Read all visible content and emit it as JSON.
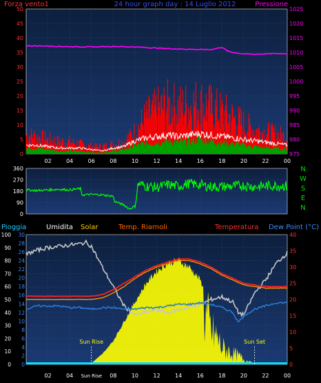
{
  "colors": {
    "background": "#000000",
    "panel_top": "#0d1f3d",
    "panel_bottom": "#1b3a73",
    "axis_text": "#ffffff",
    "wind_label": "#ff3030",
    "title": "#3050ff",
    "pressure_label": "#ff00ff",
    "rain_label": "#22c8ff",
    "humidity_label": "#ffffff",
    "solar_label": "#ffd000",
    "riarnoli_label": "#ff6a00",
    "temperature_label": "#ff3030",
    "dewpoint_label": "#3a8cff",
    "direction_letters": "#00e000"
  },
  "chart_data": [
    {
      "id": "wind_pressure",
      "type": "area",
      "title": "24 hour graph day : 14 Luglio 2012",
      "left_label": "Forza vento1",
      "right_label": "Pressione",
      "ylim_left": [
        0,
        50
      ],
      "yticks_left": [
        "0",
        "5",
        "10",
        "15",
        "20",
        "25",
        "30",
        "35",
        "40",
        "45",
        "50"
      ],
      "ylim_right": [
        975,
        1025
      ],
      "yticks_right": [
        "975",
        "980",
        "985",
        "990",
        "995",
        "1000",
        "1005",
        "1010",
        "1015",
        "1020",
        "1025"
      ],
      "xticks": [
        "02",
        "04",
        "06",
        "08",
        "10",
        "12",
        "14",
        "16",
        "18",
        "20",
        "22",
        "00"
      ],
      "series": [
        {
          "name": "Forza vento1",
          "color": "#ff0000",
          "style": "gust-bars",
          "x": [
            0,
            1,
            2,
            3,
            4,
            5,
            6,
            7,
            8,
            9,
            10,
            11,
            12,
            13,
            14,
            15,
            16,
            17,
            18,
            19,
            20,
            21,
            22,
            23,
            24
          ],
          "values": [
            8,
            7,
            6,
            5,
            5,
            4,
            3,
            3,
            4,
            5,
            9,
            15,
            18,
            20,
            19,
            20,
            21,
            19,
            17,
            15,
            12,
            10,
            9,
            8,
            7
          ]
        },
        {
          "name": "wind-average",
          "color": "#00a000",
          "style": "filled",
          "x": [
            0,
            1,
            2,
            3,
            4,
            5,
            6,
            7,
            8,
            9,
            10,
            11,
            12,
            13,
            14,
            15,
            16,
            17,
            18,
            19,
            20,
            21,
            22,
            23,
            24
          ],
          "values": [
            2,
            2,
            1.5,
            1,
            1,
            1,
            0.5,
            0.5,
            1,
            1.5,
            3,
            3.5,
            4,
            4.5,
            4,
            4.5,
            5,
            4.5,
            4,
            3.5,
            3,
            2.5,
            2,
            2,
            1.5
          ]
        },
        {
          "name": "wind-line",
          "color": "#ffffff",
          "style": "line",
          "x": [
            0,
            1,
            2,
            3,
            4,
            5,
            6,
            7,
            8,
            9,
            10,
            11,
            12,
            13,
            14,
            15,
            16,
            17,
            18,
            19,
            20,
            21,
            22,
            23,
            24
          ],
          "values": [
            3,
            3,
            2.5,
            2,
            2,
            2,
            1.5,
            1,
            2,
            2.5,
            4.5,
            5.5,
            6,
            6.5,
            6,
            6.5,
            7,
            6.5,
            6,
            5.5,
            5,
            4.5,
            4,
            3.5,
            3
          ]
        },
        {
          "name": "Pressione",
          "color": "#ff00ff",
          "style": "line",
          "axis": "right",
          "x": [
            0,
            2,
            4,
            6,
            8,
            10,
            12,
            14,
            16,
            17,
            18,
            18.5,
            19,
            20,
            21,
            22,
            23,
            24
          ],
          "values": [
            1012.3,
            1012.2,
            1012.0,
            1011.9,
            1012.1,
            1011.9,
            1011.5,
            1011.2,
            1011.0,
            1011.0,
            1011.8,
            1010.5,
            1010.0,
            1009.5,
            1009.4,
            1009.5,
            1009.6,
            1009.6
          ]
        }
      ]
    },
    {
      "id": "wind_direction",
      "type": "line",
      "ylim": [
        0,
        360
      ],
      "yticks": [
        "0",
        "90",
        "180",
        "270",
        "360"
      ],
      "direction_letters": [
        "N",
        "W",
        "S",
        "E",
        "N"
      ],
      "series": [
        {
          "name": "direction",
          "color": "#00ff00",
          "x": [
            0,
            1,
            2,
            3,
            4,
            5,
            5.1,
            6,
            7,
            8,
            8.1,
            9,
            9.5,
            10,
            10.3,
            11,
            12,
            13,
            14,
            15,
            16,
            17,
            18,
            19,
            20,
            21,
            22,
            23,
            24
          ],
          "values": [
            190,
            185,
            190,
            195,
            190,
            200,
            150,
            155,
            150,
            140,
            100,
            70,
            40,
            60,
            240,
            220,
            210,
            230,
            220,
            240,
            230,
            215,
            215,
            220,
            225,
            215,
            220,
            225,
            220
          ]
        }
      ]
    },
    {
      "id": "temp_solar",
      "type": "line",
      "labels": [
        "Pioggia",
        "Umidita",
        "Solar",
        "Temp. Riarnoli",
        "Temperatura",
        "Dew Point (°C)"
      ],
      "ylim_left_outer": [
        0,
        100
      ],
      "yticks_left_outer": [
        "0",
        "10",
        "20",
        "30",
        "40",
        "50",
        "60",
        "70",
        "80",
        "90",
        "100"
      ],
      "ylim_left_inner": [
        0,
        30
      ],
      "yticks_left_inner": [
        "0",
        "2",
        "4",
        "6",
        "8",
        "10",
        "12",
        "14",
        "16",
        "18",
        "20",
        "22",
        "24",
        "26",
        "28",
        "30"
      ],
      "ylim_right": [
        0,
        40
      ],
      "yticks_right": [
        "0",
        "5",
        "10",
        "15",
        "20",
        "25",
        "30",
        "35",
        "40"
      ],
      "xticks": [
        "02",
        "04",
        "Sun Rise",
        "08",
        "10",
        "12",
        "14",
        "16",
        "18",
        "20",
        "22",
        "00"
      ],
      "annotations": [
        {
          "text": "Sun Rise",
          "x": 6.0
        },
        {
          "text": "Sun Set",
          "x": 21.0
        }
      ],
      "series": [
        {
          "name": "Solar",
          "color": "#ffff00",
          "style": "filled",
          "axis": "left_outer",
          "x": [
            0,
            5.8,
            6,
            7,
            8,
            9,
            10,
            11,
            12,
            13,
            14,
            15,
            16,
            16.5,
            17,
            17.5,
            18,
            19,
            20,
            20.5,
            21,
            24
          ],
          "values": [
            0,
            0,
            1,
            8,
            18,
            33,
            48,
            62,
            72,
            78,
            80,
            75,
            65,
            55,
            35,
            30,
            18,
            12,
            6,
            3,
            0,
            0
          ]
        },
        {
          "name": "Umidita",
          "color": "#c8c8c8",
          "style": "line",
          "axis": "left_outer",
          "x": [
            0,
            1,
            2,
            3,
            4,
            5,
            5.5,
            6,
            7,
            8,
            9,
            10,
            11,
            12,
            13,
            14,
            15,
            16,
            17,
            18,
            18.5,
            19,
            19.5,
            20,
            21,
            22,
            23,
            24
          ],
          "values": [
            85,
            88,
            90,
            91,
            92,
            93,
            94,
            91,
            75,
            60,
            45,
            38,
            40,
            42,
            40,
            42,
            44,
            46,
            50,
            52,
            50,
            48,
            40,
            38,
            55,
            65,
            78,
            86
          ]
        },
        {
          "name": "Temperatura",
          "color": "#ff2020",
          "style": "line",
          "axis": "right",
          "x": [
            0,
            1,
            2,
            3,
            4,
            5,
            6,
            7,
            8,
            9,
            10,
            11,
            12,
            13,
            14,
            15,
            16,
            17,
            18,
            19,
            20,
            21,
            22,
            23,
            24
          ],
          "values": [
            21,
            21,
            21,
            21,
            21,
            21,
            21,
            21.5,
            23,
            25,
            27,
            29,
            30.5,
            31.5,
            32.5,
            32.5,
            31.5,
            30,
            28,
            26.5,
            25,
            24.5,
            24,
            24,
            24
          ]
        },
        {
          "name": "Temp. Riarnoli",
          "color": "#ff8c00",
          "style": "line",
          "axis": "right",
          "x": [
            0,
            1,
            2,
            3,
            4,
            5,
            6,
            7,
            8,
            9,
            10,
            11,
            12,
            13,
            14,
            15,
            16,
            17,
            18,
            19,
            20,
            21,
            22,
            23,
            24
          ],
          "values": [
            20,
            20,
            20,
            20,
            20,
            20,
            20,
            20.5,
            22,
            24,
            26.5,
            28.5,
            30,
            31,
            32,
            32,
            31,
            29.5,
            27.5,
            26,
            24.5,
            24,
            23.5,
            23.5,
            23.5
          ]
        },
        {
          "name": "Dew Point (°C)",
          "color": "#2a7ad0",
          "style": "line",
          "axis": "right",
          "x": [
            0,
            1,
            2,
            3,
            4,
            5,
            6,
            7,
            8,
            9,
            10,
            11,
            12,
            13,
            14,
            15,
            16,
            17,
            18,
            19,
            19.5,
            20,
            21,
            22,
            23,
            24
          ],
          "values": [
            17,
            18,
            18,
            18,
            17.5,
            17.5,
            17,
            17.5,
            17.5,
            17,
            17,
            17.5,
            17.5,
            18,
            18.5,
            18.5,
            19,
            18.5,
            17.5,
            16,
            13,
            15,
            17,
            18,
            19,
            19
          ]
        },
        {
          "name": "Pioggia",
          "color": "#00e0ff",
          "style": "line",
          "axis": "left_outer",
          "x": [
            0,
            24
          ],
          "values": [
            0,
            0
          ]
        }
      ]
    }
  ]
}
